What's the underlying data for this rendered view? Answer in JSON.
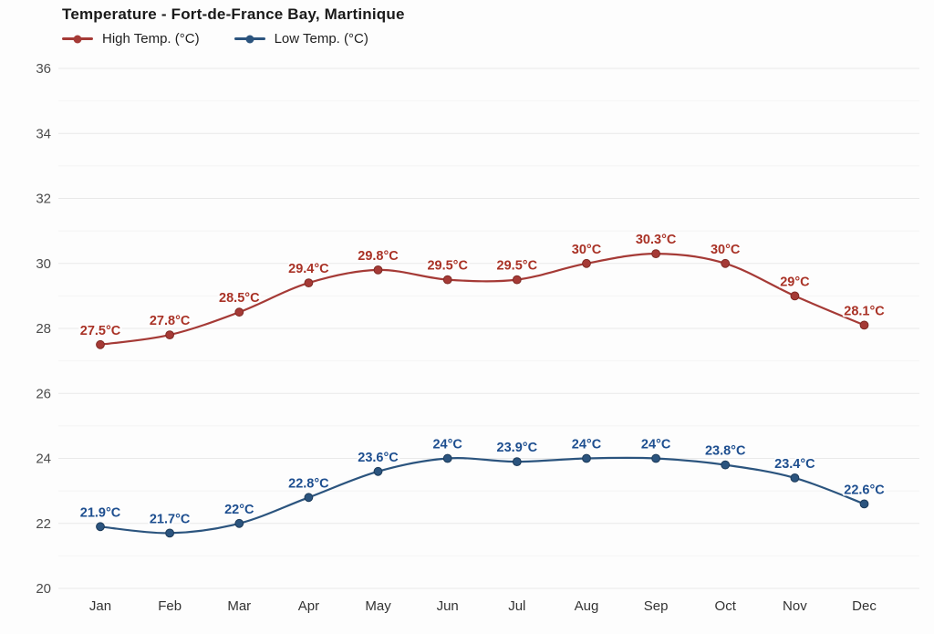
{
  "chart_data": {
    "type": "line",
    "title": "Temperature - Fort-de-France Bay, Martinique",
    "xlabel": "",
    "ylabel": "",
    "categories": [
      "Jan",
      "Feb",
      "Mar",
      "Apr",
      "May",
      "Jun",
      "Jul",
      "Aug",
      "Sep",
      "Oct",
      "Nov",
      "Dec"
    ],
    "series": [
      {
        "name": "High Temp. (°C)",
        "color": "#a53a36",
        "label_color": "#a93226",
        "marker_stroke": "#7e2a24",
        "values": [
          27.5,
          27.8,
          28.5,
          29.4,
          29.8,
          29.5,
          29.5,
          30,
          30.3,
          30,
          29,
          28.1
        ],
        "labels": [
          "27.5°C",
          "27.8°C",
          "28.5°C",
          "29.4°C",
          "29.8°C",
          "29.5°C",
          "29.5°C",
          "30°C",
          "30.3°C",
          "30°C",
          "29°C",
          "28.1°C"
        ]
      },
      {
        "name": "Low Temp. (°C)",
        "color": "#2b547e",
        "label_color": "#1d4e8f",
        "marker_stroke": "#1c3a59",
        "values": [
          21.9,
          21.7,
          22,
          22.8,
          23.6,
          24,
          23.9,
          24,
          24,
          23.8,
          23.4,
          22.6
        ],
        "labels": [
          "21.9°C",
          "21.7°C",
          "22°C",
          "22.8°C",
          "23.6°C",
          "24°C",
          "23.9°C",
          "24°C",
          "24°C",
          "23.8°C",
          "23.4°C",
          "22.6°C"
        ]
      }
    ],
    "ylim": [
      20,
      36
    ],
    "yticks": [
      20,
      22,
      24,
      26,
      28,
      30,
      32,
      34,
      36
    ],
    "minor_ticks": [
      21,
      23,
      25,
      27,
      29,
      31,
      33,
      35
    ],
    "grid": true,
    "legend_position": "top-left",
    "colors": {
      "background": "#fdfdfd",
      "grid_major": "#e9e9e9",
      "grid_minor": "#f4f4f4",
      "axis_text": "#4c4c4c",
      "title_text": "#1a1a1a"
    }
  }
}
